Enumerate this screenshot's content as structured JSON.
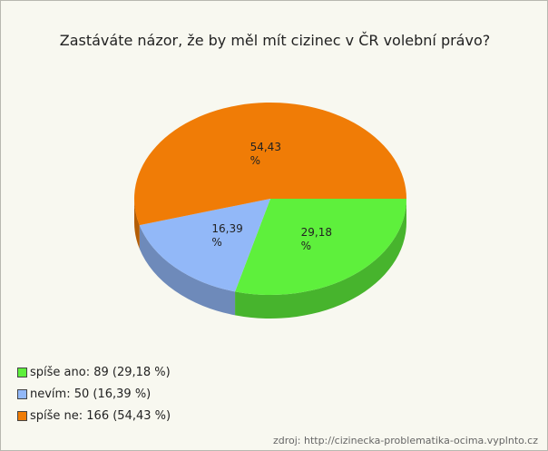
{
  "chart_data": {
    "type": "pie",
    "title": "Zastáváte názor, že by měl mít cizinec v ČR volební právo?",
    "categories": [
      "spíše ano",
      "nevím",
      "spíše ne"
    ],
    "values": [
      29.18,
      16.39,
      54.43
    ],
    "value_labels": [
      "29,18 %",
      "16,39 %",
      "54,43 %"
    ],
    "colors": [
      "#5ef03c",
      "#92b8f8",
      "#f07c06"
    ],
    "legend_labels": [
      "spíše ano: 89 (29,18 %)",
      "nevím: 50 (16,39 %)",
      "spíše ne: 166 (54,43 %)"
    ],
    "legend": "bottom-left",
    "source": "zdroj: http://cizinecka-problematika-ocima.vyplnto.cz"
  }
}
